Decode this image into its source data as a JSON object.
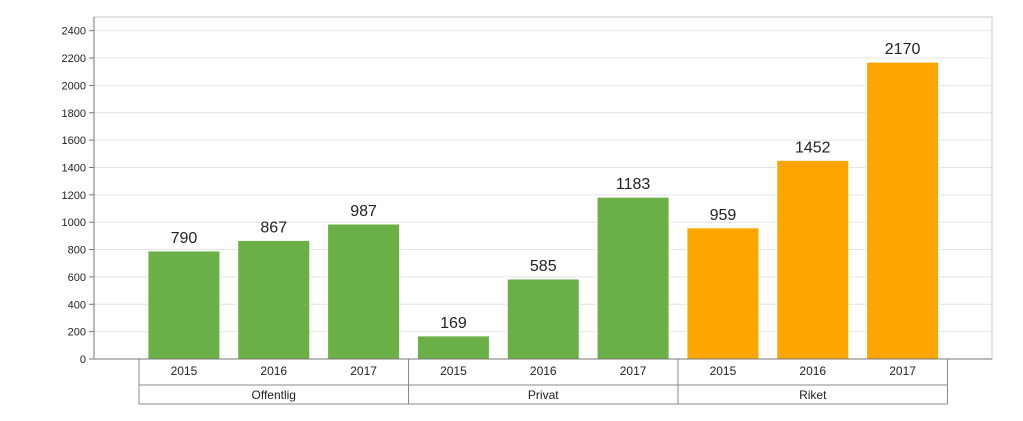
{
  "chart_data": {
    "type": "bar",
    "groups": [
      {
        "name": "Offentlig",
        "categories": [
          "2015",
          "2016",
          "2017"
        ],
        "values": [
          790,
          867,
          987
        ],
        "color": "#6ab046"
      },
      {
        "name": "Privat",
        "categories": [
          "2015",
          "2016",
          "2017"
        ],
        "values": [
          169,
          585,
          1183
        ],
        "color": "#6ab046"
      },
      {
        "name": "Riket",
        "categories": [
          "2015",
          "2016",
          "2017"
        ],
        "values": [
          959,
          1452,
          2170
        ],
        "color": "#ffa500"
      }
    ],
    "y_ticks": [
      0,
      200,
      400,
      600,
      800,
      1000,
      1200,
      1400,
      1600,
      1800,
      2000,
      2200,
      2400
    ],
    "ylim": [
      0,
      2500
    ],
    "grid": true,
    "data_labels": true
  }
}
